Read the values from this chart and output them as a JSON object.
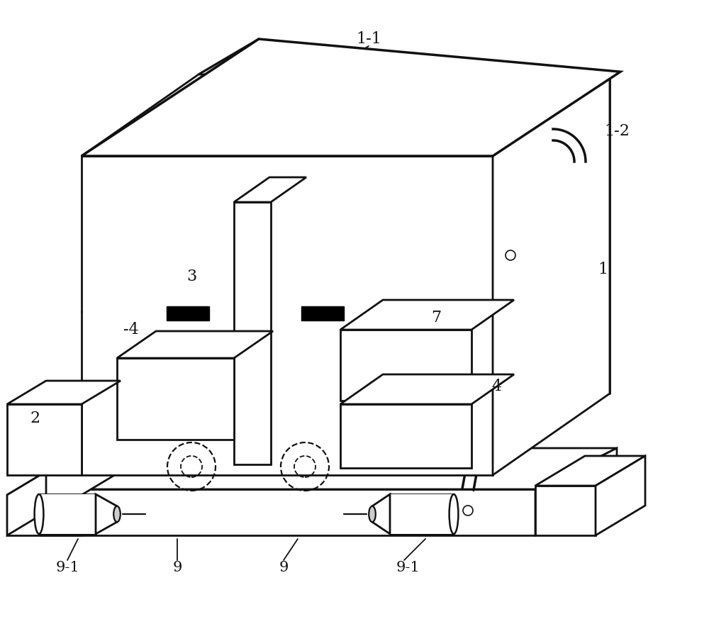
{
  "bg": "#ffffff",
  "lc": "#111111",
  "lw": 2.0,
  "dlw": 1.6,
  "fs": 14,
  "figsize": [
    10.0,
    8.73
  ],
  "dpi": 100
}
